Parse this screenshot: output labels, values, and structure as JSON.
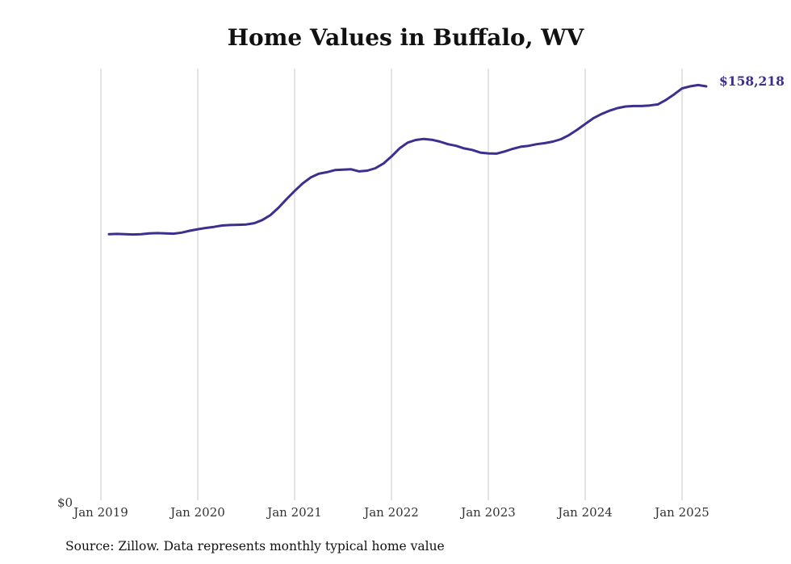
{
  "chart_data": {
    "type": "line",
    "title": "Home Values in Buffalo, WV",
    "xlabel": "",
    "ylabel": "",
    "x_ticks": [
      "Jan 2019",
      "Jan 2020",
      "Jan 2021",
      "Jan 2022",
      "Jan 2023",
      "Jan 2024",
      "Jan 2025"
    ],
    "y_ticks": [
      "$0"
    ],
    "ylim": [
      0,
      165000
    ],
    "grid": "vertical",
    "line_color": "#3b2f8f",
    "end_label": "$158,218",
    "series": [
      {
        "x": [
          "2019-02",
          "2019-03",
          "2019-04",
          "2019-05",
          "2019-06",
          "2019-07",
          "2019-08",
          "2019-09",
          "2019-10",
          "2019-11",
          "2019-12",
          "2020-01",
          "2020-02",
          "2020-03",
          "2020-04",
          "2020-05",
          "2020-06",
          "2020-07",
          "2020-08",
          "2020-09",
          "2020-10",
          "2020-11",
          "2020-12",
          "2021-01",
          "2021-02",
          "2021-03",
          "2021-04",
          "2021-05",
          "2021-06",
          "2021-07",
          "2021-08",
          "2021-09",
          "2021-10",
          "2021-11",
          "2021-12",
          "2022-01",
          "2022-02",
          "2022-03",
          "2022-04",
          "2022-05",
          "2022-06",
          "2022-07",
          "2022-08",
          "2022-09",
          "2022-10",
          "2022-11",
          "2022-12",
          "2023-01",
          "2023-02",
          "2023-03",
          "2023-04",
          "2023-05",
          "2023-06",
          "2023-07",
          "2023-08",
          "2023-09",
          "2023-10",
          "2023-11",
          "2023-12",
          "2024-01",
          "2024-02",
          "2024-03",
          "2024-04",
          "2024-05",
          "2024-06",
          "2024-07",
          "2024-08",
          "2024-09",
          "2024-10",
          "2024-11",
          "2024-12",
          "2025-01",
          "2025-02",
          "2025-03",
          "2025-04"
        ],
        "values": [
          101700,
          101800,
          101700,
          101600,
          101700,
          102000,
          102100,
          102000,
          101900,
          102300,
          103000,
          103600,
          104100,
          104500,
          105000,
          105200,
          105300,
          105400,
          105900,
          107100,
          109000,
          111800,
          115100,
          118200,
          121100,
          123400,
          124800,
          125400,
          126200,
          126400,
          126500,
          125700,
          126000,
          126900,
          128700,
          131400,
          134500,
          136700,
          137700,
          138100,
          137800,
          137100,
          136100,
          135500,
          134500,
          133900,
          132900,
          132600,
          132500,
          133300,
          134300,
          135100,
          135500,
          136100,
          136500,
          137100,
          138000,
          139600,
          141600,
          143800,
          146000,
          147600,
          148900,
          149900,
          150500,
          150700,
          150700,
          150900,
          151300,
          153000,
          155100,
          157400,
          158200,
          158700,
          158218
        ]
      }
    ]
  }
}
